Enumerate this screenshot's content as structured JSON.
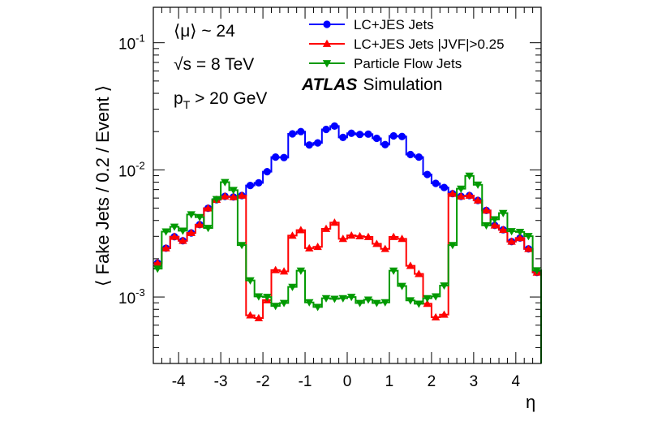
{
  "chart_data": {
    "type": "line",
    "style": "step-histogram-with-markers",
    "xlabel": "η",
    "ylabel": "⟨ Fake Jets / 0.2 / Event ⟩",
    "xlim": [
      -4.6,
      4.6
    ],
    "ylim": [
      0.0003,
      0.19
    ],
    "yscale": "log",
    "grid": false,
    "xticks": [
      -4,
      -3,
      -2,
      -1,
      0,
      1,
      2,
      3,
      4
    ],
    "xtick_labels": [
      "-4",
      "-3",
      "-2",
      "-1",
      "0",
      "1",
      "2",
      "3",
      "4"
    ],
    "ytick_labels": [
      {
        "value": 0.1,
        "base": "10",
        "exp": "-1"
      },
      {
        "value": 0.01,
        "base": "10",
        "exp": "-2"
      },
      {
        "value": 0.001,
        "base": "10",
        "exp": "-3"
      }
    ],
    "legend_position": "top-right",
    "x": [
      -4.5,
      -4.3,
      -4.1,
      -3.9,
      -3.7,
      -3.5,
      -3.3,
      -3.1,
      -2.9,
      -2.7,
      -2.5,
      -2.3,
      -2.1,
      -1.9,
      -1.7,
      -1.5,
      -1.3,
      -1.1,
      -0.9,
      -0.7,
      -0.5,
      -0.3,
      -0.1,
      0.1,
      0.3,
      0.5,
      0.7,
      0.9,
      1.1,
      1.3,
      1.5,
      1.7,
      1.9,
      2.1,
      2.3,
      2.5,
      2.7,
      2.9,
      3.1,
      3.3,
      3.5,
      3.7,
      3.9,
      4.1,
      4.3,
      4.5
    ],
    "series": [
      {
        "name": "LC+JES Jets",
        "color": "#0000ff",
        "marker": "circle",
        "values": [
          0.00185,
          0.00242,
          0.00298,
          0.00277,
          0.00319,
          0.00371,
          0.00499,
          0.00583,
          0.00619,
          0.00612,
          0.00628,
          0.00754,
          0.00791,
          0.00967,
          0.0126,
          0.0125,
          0.0192,
          0.02,
          0.0157,
          0.0163,
          0.0208,
          0.0221,
          0.018,
          0.0194,
          0.019,
          0.0191,
          0.0177,
          0.0158,
          0.0185,
          0.0183,
          0.0132,
          0.0126,
          0.0092,
          0.00783,
          0.00727,
          0.0065,
          0.00619,
          0.00628,
          0.00575,
          0.0048,
          0.00366,
          0.00338,
          0.00273,
          0.00291,
          0.00239,
          0.00156
        ]
      },
      {
        "name": "LC+JES Jets |JVF|>0.25",
        "color": "#ff0000",
        "marker": "triangle-up",
        "values": [
          0.00185,
          0.00242,
          0.00298,
          0.00277,
          0.00319,
          0.00371,
          0.00499,
          0.00583,
          0.00619,
          0.00612,
          0.00628,
          0.000718,
          0.000683,
          0.000945,
          0.00163,
          0.00159,
          0.00304,
          0.00336,
          0.00242,
          0.00248,
          0.00344,
          0.00385,
          0.00287,
          0.00305,
          0.00301,
          0.00297,
          0.00262,
          0.00239,
          0.00297,
          0.00287,
          0.00176,
          0.00152,
          0.000885,
          0.000693,
          0.000727,
          0.0065,
          0.00619,
          0.00628,
          0.00575,
          0.0048,
          0.00366,
          0.00338,
          0.00273,
          0.00291,
          0.00239,
          0.00156
        ]
      },
      {
        "name": "Particle Flow Jets",
        "color": "#009900",
        "marker": "triangle-down",
        "values": [
          0.00167,
          0.00327,
          0.00357,
          0.00332,
          0.00446,
          0.00425,
          0.00349,
          0.00588,
          0.008,
          0.00693,
          0.00256,
          0.00135,
          0.00101,
          0.001,
          0.00085,
          0.000897,
          0.0012,
          0.00161,
          0.000907,
          0.000835,
          0.000977,
          0.000967,
          0.000977,
          0.001,
          0.000897,
          0.000953,
          0.000897,
          0.000907,
          0.00161,
          0.00122,
          0.00094,
          0.000885,
          0.000977,
          0.00101,
          0.00123,
          0.00256,
          0.0071,
          0.00898,
          0.00764,
          0.00366,
          0.00408,
          0.00457,
          0.00329,
          0.00325,
          0.00301,
          0.00162
        ]
      }
    ],
    "annotations": {
      "mu": "⟨μ⟩ ~ 24",
      "sqrts": "√s = 8 TeV",
      "pt_base": "p",
      "pt_sub": "T",
      "pt_rest": " > 20 GeV",
      "atlas": "ATLAS",
      "simulation": "Simulation"
    }
  }
}
